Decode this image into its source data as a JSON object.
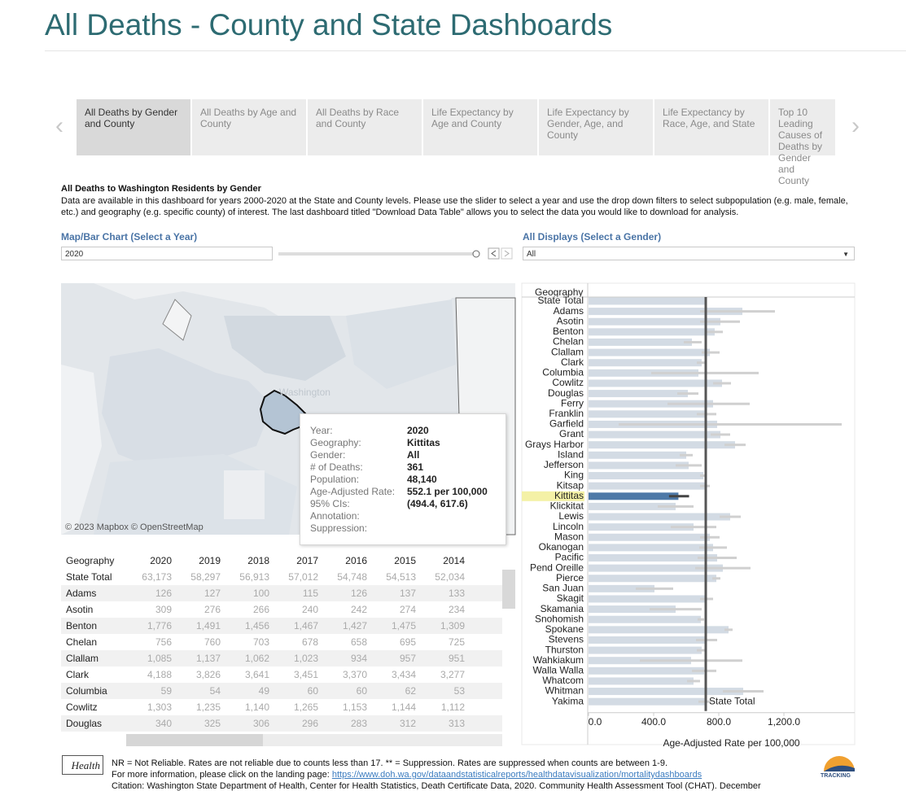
{
  "header": {
    "title": "All Deaths - County and State Dashboards"
  },
  "tabs": [
    "All Deaths by Gender and County",
    "All Deaths by Age and County",
    "All Deaths by Race and County",
    "Life Expectancy by Age and County",
    "Life Expectancy by Gender, Age, and County",
    "Life Expectancy by Race,  Age, and State",
    "Top 10 Leading Causes of Deaths by Gender and County"
  ],
  "intro": {
    "heading": "All Deaths to Washington Residents by Gender",
    "text": "Data are available in this dashboard for years 2000-2020 at the State and County levels. Please use the slider to select a year and use the drop down filters to select subpopulation (e.g. male, female, etc.) and geography (e.g. specific county) of interest. The last dashboard titled \"Download Data Table\" allows you to select the data you would like to download for analysis."
  },
  "controls": {
    "year_label": "Map/Bar Chart (Select a Year)",
    "year_value": "2020",
    "gender_label": "All Displays (Select a Gender)",
    "gender_value": "All"
  },
  "map": {
    "place_label": "Washington",
    "attribution": "© 2023 Mapbox © OpenStreetMap",
    "tooltip": [
      {
        "label": "Year:",
        "value": "2020"
      },
      {
        "label": "Geography:",
        "value": "Kittitas"
      },
      {
        "label": "Gender:",
        "value": "All"
      },
      {
        "label": "# of Deaths:",
        "value": "361"
      },
      {
        "label": "Population:",
        "value": "48,140"
      },
      {
        "label": "Age-Adjusted Rate:",
        "value": "552.1 per 100,000"
      },
      {
        "label": "95% CIs:",
        "value": "(494.4, 617.6)"
      },
      {
        "label": "Annotation:"
      },
      {
        "label": "Suppression:"
      }
    ]
  },
  "table": {
    "columns": [
      "Geography",
      "2020",
      "2019",
      "2018",
      "2017",
      "2016",
      "2015",
      "2014"
    ],
    "rows": [
      [
        "State Total",
        "63,173",
        "58,297",
        "56,913",
        "57,012",
        "54,748",
        "54,513",
        "52,034"
      ],
      [
        "Adams",
        "126",
        "127",
        "100",
        "115",
        "126",
        "137",
        "133"
      ],
      [
        "Asotin",
        "309",
        "276",
        "266",
        "240",
        "242",
        "274",
        "234"
      ],
      [
        "Benton",
        "1,776",
        "1,491",
        "1,456",
        "1,467",
        "1,427",
        "1,475",
        "1,309"
      ],
      [
        "Chelan",
        "756",
        "760",
        "703",
        "678",
        "658",
        "695",
        "725"
      ],
      [
        "Clallam",
        "1,085",
        "1,137",
        "1,062",
        "1,023",
        "934",
        "957",
        "951"
      ],
      [
        "Clark",
        "4,188",
        "3,826",
        "3,641",
        "3,451",
        "3,370",
        "3,434",
        "3,277"
      ],
      [
        "Columbia",
        "59",
        "54",
        "49",
        "60",
        "60",
        "62",
        "53"
      ],
      [
        "Cowlitz",
        "1,303",
        "1,235",
        "1,140",
        "1,265",
        "1,153",
        "1,144",
        "1,112"
      ],
      [
        "Douglas",
        "340",
        "325",
        "306",
        "296",
        "283",
        "312",
        "313"
      ]
    ]
  },
  "chart_data": {
    "type": "bar",
    "orientation": "horizontal",
    "category_header": "Geography",
    "categories": [
      "State Total",
      "Adams",
      "Asotin",
      "Benton",
      "Chelan",
      "Clallam",
      "Clark",
      "Columbia",
      "Cowlitz",
      "Douglas",
      "Ferry",
      "Franklin",
      "Garfield",
      "Grant",
      "Grays Harbor",
      "Island",
      "Jefferson",
      "King",
      "Kitsap",
      "Kittitas",
      "Klickitat",
      "Lewis",
      "Lincoln",
      "Mason",
      "Okanogan",
      "Pacific",
      "Pend Oreille",
      "Pierce",
      "San Juan",
      "Skagit",
      "Skamania",
      "Snohomish",
      "Spokane",
      "Stevens",
      "Thurston",
      "Wahkiakum",
      "Walla Walla",
      "Whatcom",
      "Whitman",
      "Yakima"
    ],
    "values": [
      720,
      945,
      810,
      775,
      635,
      745,
      695,
      675,
      820,
      610,
      765,
      725,
      790,
      810,
      900,
      600,
      615,
      705,
      715,
      552.1,
      535,
      870,
      645,
      745,
      765,
      790,
      825,
      785,
      405,
      725,
      535,
      690,
      860,
      725,
      695,
      630,
      710,
      645,
      950,
      715
    ],
    "error_low": [
      715,
      685,
      685,
      725,
      585,
      695,
      665,
      385,
      765,
      545,
      485,
      665,
      185,
      750,
      835,
      560,
      535,
      685,
      685,
      494.4,
      425,
      805,
      505,
      685,
      680,
      670,
      655,
      760,
      290,
      685,
      375,
      670,
      835,
      660,
      665,
      315,
      635,
      605,
      825,
      675
    ],
    "error_high": [
      725,
      1145,
      930,
      825,
      695,
      805,
      725,
      1045,
      875,
      675,
      990,
      785,
      1555,
      870,
      965,
      640,
      695,
      725,
      745,
      617.6,
      645,
      935,
      785,
      805,
      850,
      910,
      995,
      810,
      520,
      765,
      695,
      710,
      885,
      790,
      725,
      945,
      785,
      685,
      1075,
      755
    ],
    "color": "#d3dbe4",
    "error_color": "#d0d0d0",
    "selected": "Kittitas",
    "selected_color": "#4e79a7",
    "reference_line": {
      "value": 720,
      "label": "State Total"
    },
    "xlim": [
      0,
      1635
    ],
    "xticks": [
      {
        "value": 0,
        "label": "0.0"
      },
      {
        "value": 400,
        "label": "400.0"
      },
      {
        "value": 800,
        "label": "800.0"
      },
      {
        "value": 1200,
        "label": "1,200.0"
      }
    ],
    "x_label": "Age-Adjusted Rate per 100,000"
  },
  "footer": {
    "logo": "Health",
    "notes": "NR = Not Reliable. Rates are not reliable due to counts less than 17.  ** = Suppression. Rates are suppressed when counts are between 1-9.",
    "link_intro": "For more information, please click on the landing page: ",
    "link": "https://www.doh.wa.gov/dataandstatisticalreports/healthdatavisualization/mortalitydashboards",
    "citation": "Citation: Washington State Department of Health, Center for Health Statistics, Death Certificate Data, 2020. Community Health Assessment Tool (CHAT). December",
    "tracking": "TRACKING"
  }
}
